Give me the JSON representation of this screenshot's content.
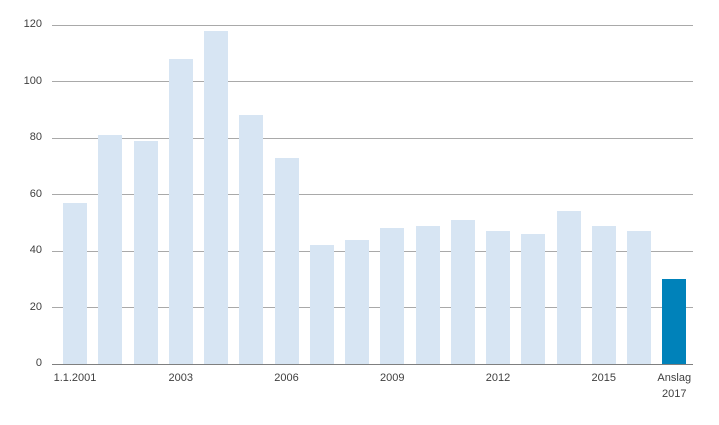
{
  "chart_data": {
    "type": "bar",
    "title": "",
    "xlabel": "",
    "ylabel": "",
    "ylim": [
      0,
      120
    ],
    "yticks": [
      0,
      20,
      40,
      60,
      80,
      100,
      120
    ],
    "grid": "horizontal",
    "legend": "none",
    "bar_count": 18,
    "values": [
      57,
      81,
      79,
      108,
      118,
      88,
      73,
      42,
      44,
      48,
      49,
      51,
      47,
      46,
      54,
      49,
      47,
      30
    ],
    "highlight_index": 17,
    "x_ticks": [
      {
        "bar_index": 0,
        "label": "1.1.2001"
      },
      {
        "bar_index": 3,
        "label": "2003"
      },
      {
        "bar_index": 6,
        "label": "2006"
      },
      {
        "bar_index": 9,
        "label": "2009"
      },
      {
        "bar_index": 12,
        "label": "2012"
      },
      {
        "bar_index": 15,
        "label": "2015"
      },
      {
        "bar_index": 17,
        "label": "Anslag\n2017"
      }
    ],
    "colors": {
      "bar": "#d7e5f3",
      "highlight_bar": "#0082ba",
      "gridline": "#a9a9a9",
      "axis_line": "#7f7f7f",
      "text": "#404040"
    }
  }
}
